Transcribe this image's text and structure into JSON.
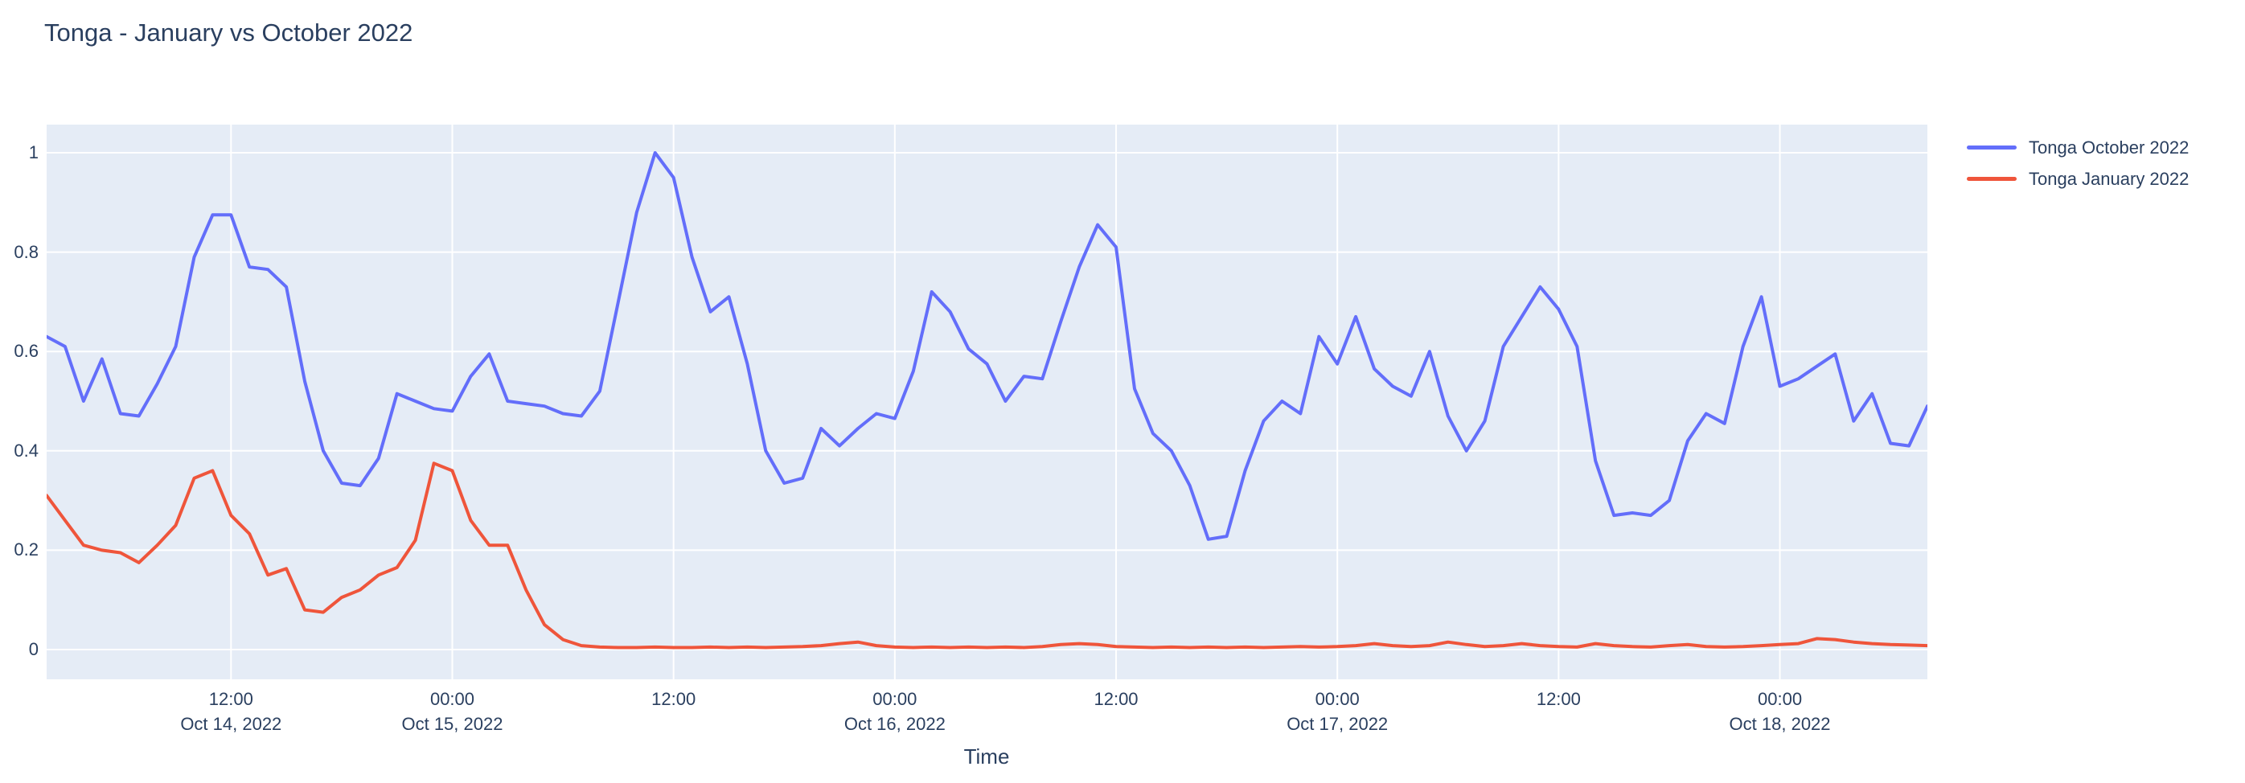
{
  "title": "Tonga - January vs October 2022",
  "x_axis": {
    "title": "Time",
    "ticks": [
      {
        "t": 10,
        "time": "12:00",
        "date": "Oct 14, 2022"
      },
      {
        "t": 22,
        "time": "00:00",
        "date": "Oct 15, 2022"
      },
      {
        "t": 34,
        "time": "12:00",
        "date": ""
      },
      {
        "t": 46,
        "time": "00:00",
        "date": "Oct 16, 2022"
      },
      {
        "t": 58,
        "time": "12:00",
        "date": ""
      },
      {
        "t": 70,
        "time": "00:00",
        "date": "Oct 17, 2022"
      },
      {
        "t": 82,
        "time": "12:00",
        "date": ""
      },
      {
        "t": 94,
        "time": "00:00",
        "date": "Oct 18, 2022"
      }
    ]
  },
  "y_axis": {
    "ticks": [
      {
        "v": 0,
        "label": "0"
      },
      {
        "v": 0.2,
        "label": "0.2"
      },
      {
        "v": 0.4,
        "label": "0.4"
      },
      {
        "v": 0.6,
        "label": "0.6"
      },
      {
        "v": 0.8,
        "label": "0.8"
      },
      {
        "v": 1,
        "label": "1"
      }
    ]
  },
  "colors": {
    "plot_background": "#e5ecf6",
    "grid": "#ffffff",
    "text": "#2a3f5f",
    "series_october": "#636efa",
    "series_january": "#ef553b"
  },
  "chart_data": {
    "type": "line",
    "title": "Tonga - January vs October 2022",
    "xlabel": "Time",
    "ylabel": "",
    "ylim": [
      0,
      1
    ],
    "grid": true,
    "legend_position": "top-right-outside",
    "x_start": "Oct 14, 2022 02:00",
    "x_interval_hours": 1,
    "x_points": 103,
    "series": [
      {
        "name": "Tonga October 2022",
        "color": "#636efa",
        "values": [
          0.63,
          0.61,
          0.5,
          0.585,
          0.475,
          0.47,
          0.535,
          0.61,
          0.79,
          0.875,
          0.875,
          0.77,
          0.765,
          0.73,
          0.54,
          0.4,
          0.335,
          0.33,
          0.385,
          0.515,
          0.5,
          0.485,
          0.48,
          0.55,
          0.595,
          0.5,
          0.495,
          0.49,
          0.475,
          0.47,
          0.52,
          0.7,
          0.88,
          1.0,
          0.95,
          0.79,
          0.68,
          0.71,
          0.575,
          0.4,
          0.335,
          0.345,
          0.445,
          0.41,
          0.445,
          0.475,
          0.465,
          0.56,
          0.72,
          0.68,
          0.605,
          0.575,
          0.5,
          0.55,
          0.545,
          0.66,
          0.77,
          0.855,
          0.81,
          0.525,
          0.435,
          0.4,
          0.33,
          0.222,
          0.228,
          0.36,
          0.46,
          0.5,
          0.475,
          0.63,
          0.575,
          0.67,
          0.565,
          0.53,
          0.51,
          0.6,
          0.47,
          0.4,
          0.46,
          0.61,
          0.67,
          0.73,
          0.685,
          0.61,
          0.38,
          0.27,
          0.275,
          0.27,
          0.3,
          0.42,
          0.475,
          0.455,
          0.61,
          0.71,
          0.53,
          0.545,
          0.57,
          0.595,
          0.46,
          0.515,
          0.415,
          0.41,
          0.49
        ]
      },
      {
        "name": "Tonga January 2022",
        "color": "#ef553b",
        "values": [
          0.31,
          0.26,
          0.21,
          0.2,
          0.195,
          0.175,
          0.21,
          0.25,
          0.345,
          0.36,
          0.27,
          0.233,
          0.15,
          0.163,
          0.08,
          0.075,
          0.105,
          0.12,
          0.15,
          0.165,
          0.22,
          0.375,
          0.36,
          0.26,
          0.21,
          0.21,
          0.12,
          0.05,
          0.02,
          0.008,
          0.005,
          0.004,
          0.004,
          0.005,
          0.004,
          0.004,
          0.005,
          0.004,
          0.005,
          0.004,
          0.005,
          0.006,
          0.008,
          0.012,
          0.015,
          0.008,
          0.005,
          0.004,
          0.005,
          0.004,
          0.005,
          0.004,
          0.005,
          0.004,
          0.006,
          0.01,
          0.012,
          0.01,
          0.006,
          0.005,
          0.004,
          0.005,
          0.004,
          0.005,
          0.004,
          0.005,
          0.004,
          0.005,
          0.006,
          0.005,
          0.006,
          0.008,
          0.012,
          0.008,
          0.006,
          0.008,
          0.015,
          0.01,
          0.006,
          0.008,
          0.012,
          0.008,
          0.006,
          0.005,
          0.012,
          0.008,
          0.006,
          0.005,
          0.008,
          0.01,
          0.006,
          0.005,
          0.006,
          0.008,
          0.01,
          0.012,
          0.022,
          0.02,
          0.015,
          0.012,
          0.01,
          0.009,
          0.008
        ]
      }
    ]
  }
}
